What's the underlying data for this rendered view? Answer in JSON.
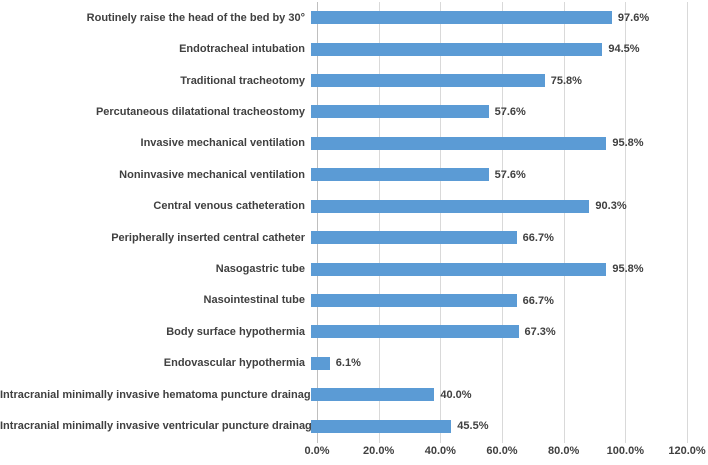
{
  "chart_data": {
    "type": "bar",
    "orientation": "horizontal",
    "title": "",
    "xlabel": "",
    "ylabel": "",
    "categories": [
      "Routinely raise the head of the bed by 30°",
      "Endotracheal intubation",
      "Traditional tracheotomy",
      "Percutaneous dilatational tracheostomy",
      "Invasive mechanical ventilation",
      "Noninvasive mechanical ventilation",
      "Central venous catheteration",
      "Peripherally inserted central catheter",
      "Nasogastric tube",
      "Nasointestinal tube",
      "Body surface hypothermia",
      "Endovascular hypothermia",
      "Intracranial minimally invasive hematoma puncture drainage",
      "Intracranial minimally invasive ventricular puncture drainage"
    ],
    "values": [
      97.6,
      94.5,
      75.8,
      57.6,
      95.8,
      57.6,
      90.3,
      66.7,
      95.8,
      66.7,
      67.3,
      6.1,
      40.0,
      45.5
    ],
    "value_labels": [
      "97.6%",
      "94.5%",
      "75.8%",
      "57.6%",
      "95.8%",
      "57.6%",
      "90.3%",
      "66.7%",
      "95.8%",
      "66.7%",
      "67.3%",
      "6.1%",
      "40.0%",
      "45.5%"
    ],
    "x_ticks": [
      "0.0%",
      "20.0%",
      "40.0%",
      "60.0%",
      "80.0%",
      "100.0%",
      "120.0%"
    ],
    "x_tick_values": [
      0,
      20,
      40,
      60,
      80,
      100,
      120
    ],
    "xlim": [
      0,
      120
    ],
    "grid": "vertical-only",
    "legend": "none",
    "colors": {
      "bar": "#5B9BD5",
      "text": "#404040",
      "gridline": "#D9D9D9",
      "axis_line": "#BFBFBF",
      "background": "#FFFFFF"
    }
  }
}
